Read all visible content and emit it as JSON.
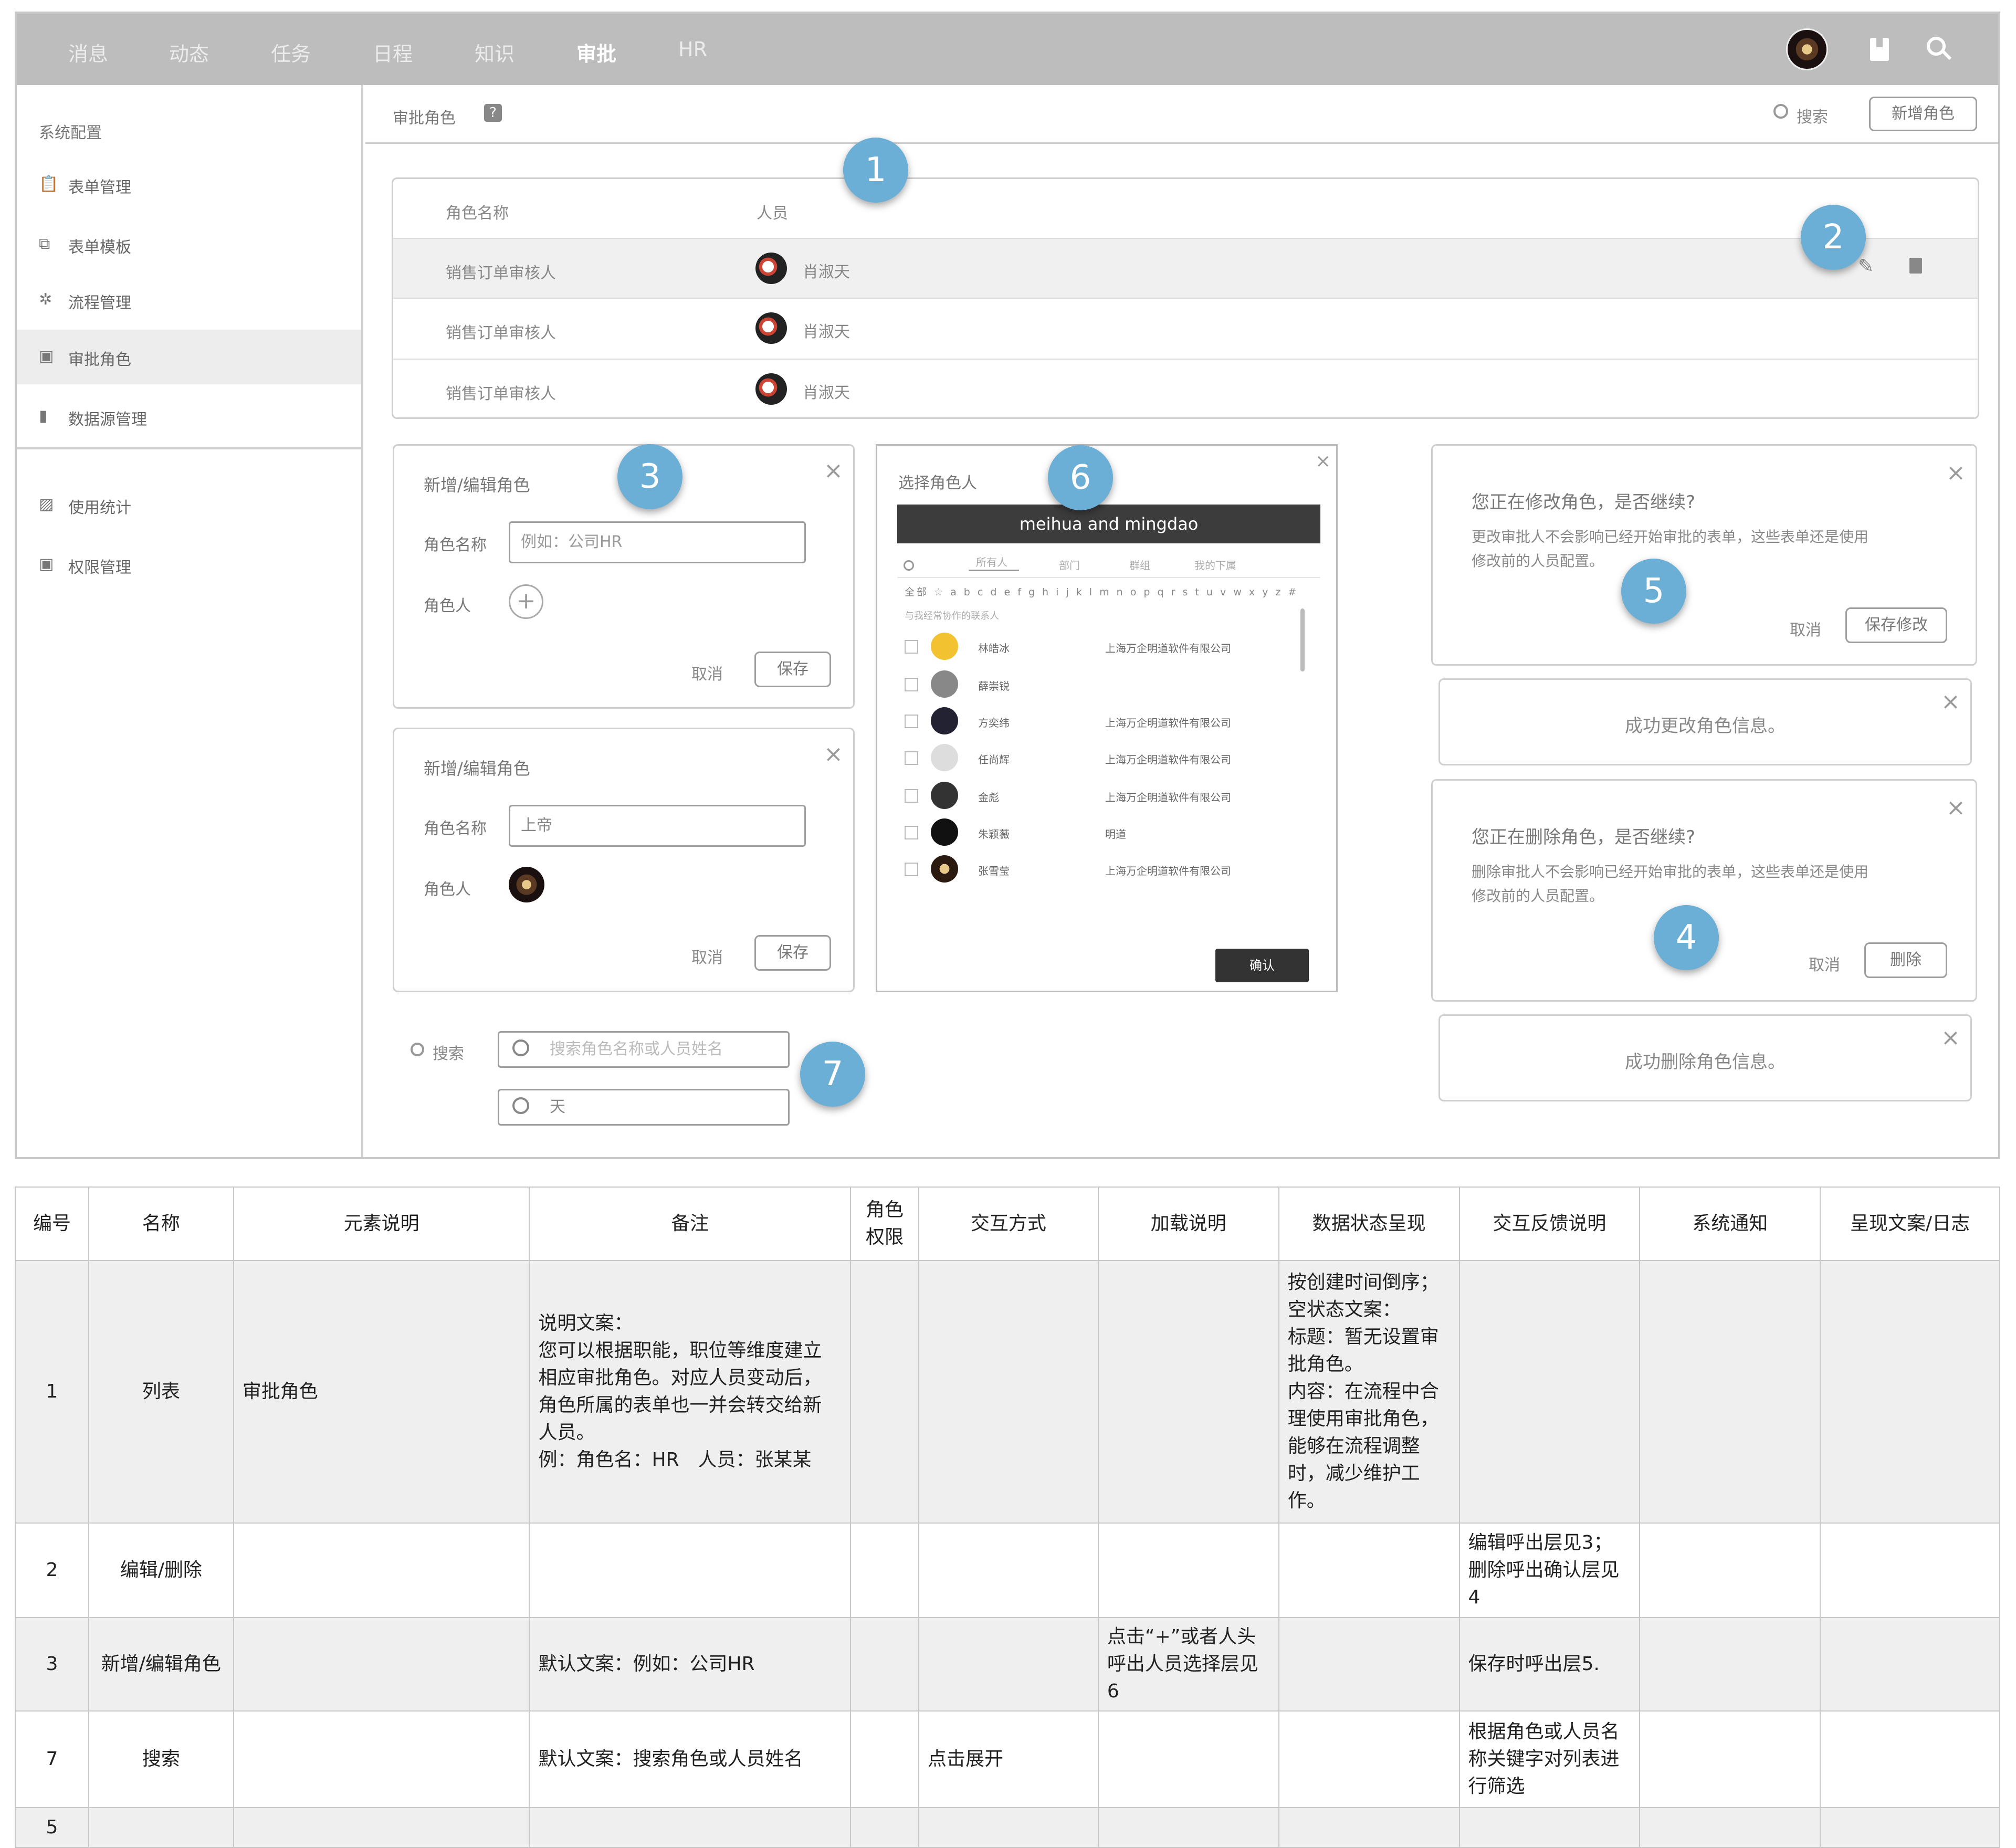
{
  "nav": {
    "items": [
      {
        "label": "消息"
      },
      {
        "label": "动态"
      },
      {
        "label": "任务"
      },
      {
        "label": "日程"
      },
      {
        "label": "知识"
      },
      {
        "label": "审批"
      },
      {
        "label": "HR"
      }
    ],
    "active": "审批"
  },
  "sidebar": {
    "header": "系统配置",
    "items": [
      {
        "label": "表单管理",
        "icon": "clipboard-icon"
      },
      {
        "label": "表单模板",
        "icon": "template-icon"
      },
      {
        "label": "流程管理",
        "icon": "gear-icon"
      },
      {
        "label": "审批角色",
        "icon": "person-card-icon"
      },
      {
        "label": "数据源管理",
        "icon": "file-icon"
      }
    ],
    "items2": [
      {
        "label": "使用统计",
        "icon": "chart-icon"
      },
      {
        "label": "权限管理",
        "icon": "person-card-icon"
      }
    ]
  },
  "header": {
    "title": "审批角色",
    "search_label": "搜索",
    "add_button": "新增角色"
  },
  "list": {
    "col_name": "角色名称",
    "col_people": "人员",
    "rows": [
      {
        "name": "销售订单审核人",
        "person": "肖淑天"
      },
      {
        "name": "销售订单审核人",
        "person": "肖淑天"
      },
      {
        "name": "销售订单审核人",
        "person": "肖淑天"
      }
    ]
  },
  "badges": [
    "1",
    "2",
    "3",
    "4",
    "5",
    "6",
    "7"
  ],
  "dialog_add": {
    "title": "新增/编辑角色",
    "name_label": "角色名称",
    "name_placeholder": "例如：公司HR",
    "member_label": "角色人",
    "cancel": "取消",
    "save": "保存"
  },
  "dialog_edit": {
    "title": "新增/编辑角色",
    "name_label": "角色名称",
    "name_value": "上帝",
    "member_label": "角色人",
    "cancel": "取消",
    "save": "保存"
  },
  "picker": {
    "title": "选择角色人",
    "banner": "meihua and mingdao",
    "tabs": [
      "所有人",
      "部门",
      "群组",
      "我的下属"
    ],
    "alpha": "全部 ☆ a b c d e f g h i j k l m n o p q r s t u v w x y z #",
    "section": "与我经常协作的联系人",
    "people": [
      {
        "name": "林皓冰",
        "company": "上海万企明道软件有限公司"
      },
      {
        "name": "薛崇锐",
        "company": ""
      },
      {
        "name": "方奕纬",
        "company": "上海万企明道软件有限公司"
      },
      {
        "name": "任尚辉",
        "company": "上海万企明道软件有限公司"
      },
      {
        "name": "金彪",
        "company": "上海万企明道软件有限公司"
      },
      {
        "name": "朱颖薇",
        "company": "明道"
      },
      {
        "name": "张雪莹",
        "company": "上海万企明道软件有限公司"
      }
    ],
    "confirm": "确认"
  },
  "confirm_edit": {
    "title": "您正在修改角色，是否继续?",
    "body1": "更改审批人不会影响已经开始审批的表单，这些表单还是使用",
    "body2": "修改前的人员配置。",
    "cancel": "取消",
    "ok": "保存修改"
  },
  "toast_edit": "成功更改角色信息。",
  "confirm_delete": {
    "title": "您正在删除角色，是否继续?",
    "body1": "删除审批人不会影响已经开始审批的表单，这些表单还是使用",
    "body2": "修改前的人员配置。",
    "cancel": "取消",
    "ok": "删除"
  },
  "toast_delete": "成功删除角色信息。",
  "search_demo": {
    "label": "搜索",
    "placeholder": "搜索角色名称或人员姓名",
    "value": "天"
  },
  "spec_table": {
    "headers": [
      "编号",
      "名称",
      "元素说明",
      "备注",
      "角色权限",
      "交互方式",
      "加载说明",
      "数据状态呈现",
      "交互反馈说明",
      "系统通知",
      "呈现文案/日志"
    ],
    "rows": [
      {
        "no": "1",
        "name": "列表",
        "element": "审批角色",
        "note": [
          "说明文案：",
          "您可以根据职能，职位等维度建立",
          "相应审批角色。对应人员变动后，",
          "角色所属的表单也一并会转交给新",
          "人员。",
          "例：角色名：HR　人员：张某某"
        ],
        "perm": "",
        "interact": "",
        "load": "",
        "state": [
          "按创建时间倒序；",
          "空状态文案：",
          "标题：暂无设置审",
          "批角色。",
          "内容：在流程中合",
          "理使用审批角色，",
          "能够在流程调整",
          "时，减少维护工",
          "作。"
        ],
        "feedback": "",
        "notify": "",
        "copy": ""
      },
      {
        "no": "2",
        "name": "编辑/删除",
        "element": "",
        "note": [],
        "perm": "",
        "interact": "",
        "load": "",
        "state": [],
        "feedback": "编辑呼出层见3；删除呼出确认层见4",
        "notify": "",
        "copy": ""
      },
      {
        "no": "3",
        "name": "新增/编辑角色",
        "element": "",
        "note": [
          "默认文案：例如：公司HR"
        ],
        "perm": "",
        "interact": "",
        "load": "点击“+”或者人头呼出人员选择层见6",
        "state": [],
        "feedback": "保存时呼出层5.",
        "notify": "",
        "copy": ""
      },
      {
        "no": "7",
        "name": "搜索",
        "element": "",
        "note": [
          "默认文案：搜索角色或人员姓名"
        ],
        "perm": "",
        "interact": "点击展开",
        "load": "",
        "state": [],
        "feedback": "根据角色或人员名称关键字对列表进行筛选",
        "notify": "",
        "copy": ""
      },
      {
        "no": "5",
        "name": "",
        "element": "",
        "note": [],
        "perm": "",
        "interact": "",
        "load": "",
        "state": [],
        "feedback": "",
        "notify": "",
        "copy": ""
      }
    ]
  }
}
